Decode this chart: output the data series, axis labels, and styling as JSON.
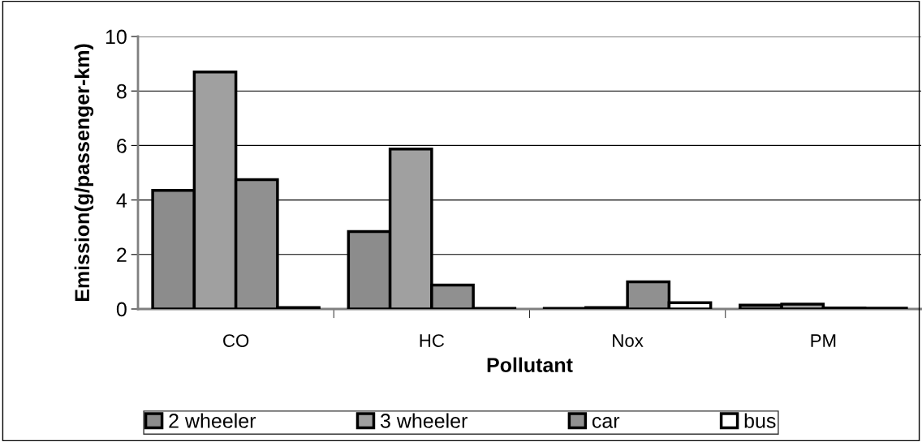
{
  "chart_data": {
    "type": "bar",
    "xlabel": "Pollutant",
    "ylabel": "Emission(g/passenger-km)",
    "categories": [
      "CO",
      "HC",
      "Nox",
      "PM"
    ],
    "series": [
      {
        "name": "2 wheeler",
        "color": "#8c8c8c",
        "values": [
          4.35,
          2.84,
          0.02,
          0.14
        ]
      },
      {
        "name": "3 wheeler",
        "color": "#a0a0a0",
        "values": [
          8.7,
          5.87,
          0.05,
          0.18
        ]
      },
      {
        "name": "car",
        "color": "#909090",
        "values": [
          4.75,
          0.88,
          1.0,
          0.04
        ]
      },
      {
        "name": "bus",
        "color": "#ffffff",
        "values": [
          0.05,
          0.02,
          0.23,
          0.03
        ]
      }
    ],
    "ylim": [
      0,
      10
    ],
    "yticks": [
      0,
      2,
      4,
      6,
      8,
      10
    ],
    "grid": "y",
    "legend": "bottom"
  }
}
